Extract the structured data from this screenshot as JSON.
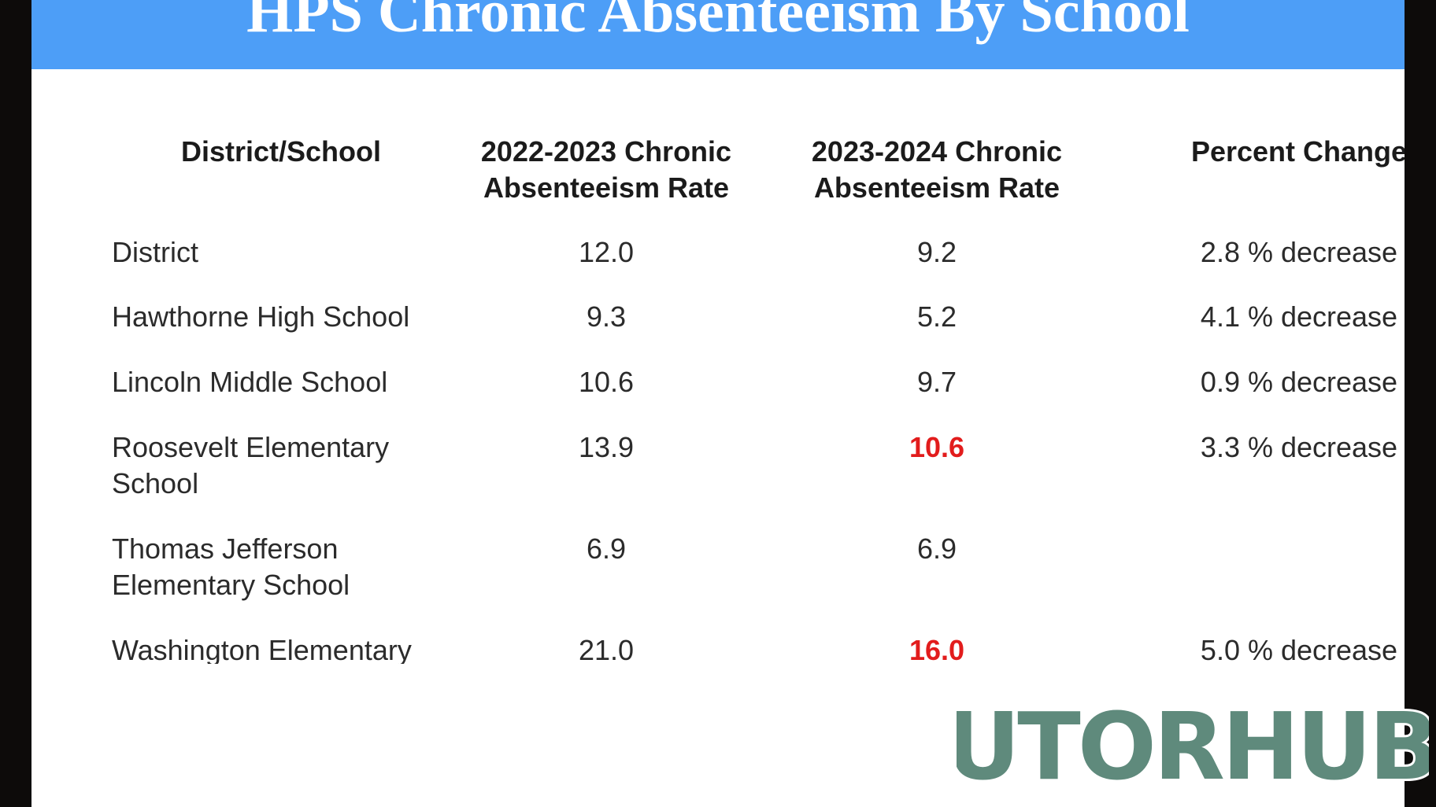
{
  "slide": {
    "title": "HPS Chronic Absenteeism By School"
  },
  "table": {
    "headers": {
      "school": "District/School",
      "rate_2022_2023": "2022-2023 Chronic Absenteeism Rate",
      "rate_2023_2024": "2023-2024 Chronic Absenteeism Rate",
      "percent_change": "Percent Change"
    },
    "rows": [
      {
        "school": "District",
        "rate_2022_2023": "12.0",
        "rate_2023_2024": "9.2",
        "percent_change": "2.8 % decrease"
      },
      {
        "school": "Hawthorne High School",
        "rate_2022_2023": "9.3",
        "rate_2023_2024": "5.2",
        "percent_change": "4.1 % decrease"
      },
      {
        "school": "Lincoln Middle School",
        "rate_2022_2023": "10.6",
        "rate_2023_2024": "9.7",
        "percent_change": "0.9 % decrease"
      },
      {
        "school": "Roosevelt Elementary School",
        "rate_2022_2023": "13.9",
        "rate_2023_2024": "10.6",
        "percent_change": "3.3 % decrease"
      },
      {
        "school": "Thomas Jefferson Elementary School",
        "rate_2022_2023": "6.9",
        "rate_2023_2024": "6.9",
        "percent_change": ""
      },
      {
        "school": "Washington Elementary",
        "rate_2022_2023": "21.0",
        "rate_2023_2024": "16.0",
        "percent_change": "5.0 % decrease"
      }
    ]
  },
  "colors": {
    "title_bar": "#4d9ef7",
    "highlight_value": "#e21c1c",
    "watermark_fill": "#5f8a7c"
  },
  "watermark": {
    "text": "TutorHubz"
  }
}
